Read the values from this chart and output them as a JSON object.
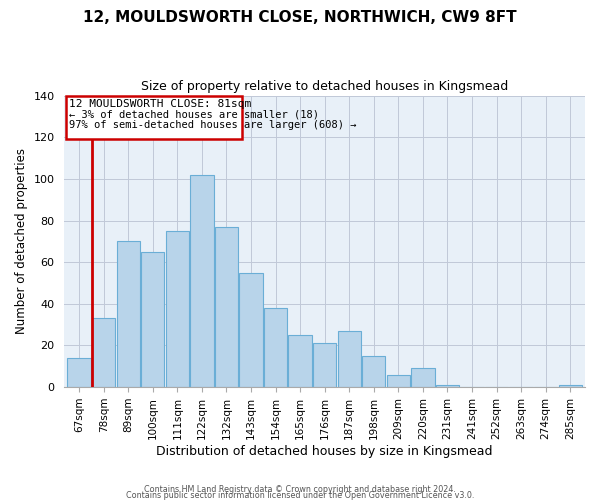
{
  "title": "12, MOULDSWORTH CLOSE, NORTHWICH, CW9 8FT",
  "subtitle": "Size of property relative to detached houses in Kingsmead",
  "xlabel": "Distribution of detached houses by size in Kingsmead",
  "ylabel": "Number of detached properties",
  "bar_labels": [
    "67sqm",
    "78sqm",
    "89sqm",
    "100sqm",
    "111sqm",
    "122sqm",
    "132sqm",
    "143sqm",
    "154sqm",
    "165sqm",
    "176sqm",
    "187sqm",
    "198sqm",
    "209sqm",
    "220sqm",
    "231sqm",
    "241sqm",
    "252sqm",
    "263sqm",
    "274sqm",
    "285sqm"
  ],
  "bar_heights": [
    14,
    33,
    70,
    65,
    75,
    102,
    77,
    55,
    38,
    25,
    21,
    27,
    15,
    6,
    9,
    1,
    0,
    0,
    0,
    0,
    1
  ],
  "bar_color": "#b8d4ea",
  "bar_edge_color": "#6aaed6",
  "highlight_bar_index": 1,
  "highlight_color": "#cc0000",
  "annotation_title": "12 MOULDSWORTH CLOSE: 81sqm",
  "annotation_line1": "← 3% of detached houses are smaller (18)",
  "annotation_line2": "97% of semi-detached houses are larger (608) →",
  "annotation_box_facecolor": "#ffffff",
  "annotation_box_edgecolor": "#cc0000",
  "background_color": "#e8f0f8",
  "ylim": [
    0,
    140
  ],
  "footnote1": "Contains HM Land Registry data © Crown copyright and database right 2024.",
  "footnote2": "Contains public sector information licensed under the Open Government Licence v3.0."
}
